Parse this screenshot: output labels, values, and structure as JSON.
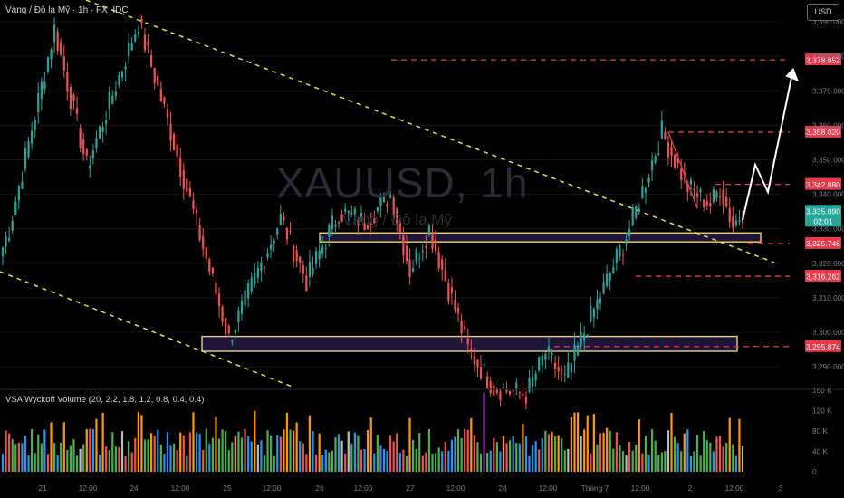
{
  "header": {
    "symbol_line": "Vàng / Đô la Mỹ · 1h · FX_IDC"
  },
  "watermark": {
    "symbol": "XAUUSD, 1h",
    "name": "Vàng / Đô la Mỹ"
  },
  "currency_button": "USD",
  "volume_indicator": {
    "title": "VSA Wyckoff Volume (20, 2.2, 1.8, 1.2, 0.8, 0.4, 0.4)"
  },
  "colors": {
    "up": "#26a69a",
    "down": "#ef5350",
    "trendline": "#e6e04a",
    "zone": "#e8d07a",
    "level": "#e8394a",
    "price_label": "#26a69a"
  },
  "chart_data": {
    "type": "candlestick",
    "ylim": [
      3284,
      3395
    ],
    "y_ticks": [
      "3,390.000",
      "3,380.000",
      "3,370.000",
      "3,360.000",
      "3,350.000",
      "3,340.000",
      "3,330.000",
      "3,320.000",
      "3,310.000",
      "3,300.000",
      "3,290.000"
    ],
    "x_ticks": [
      "21",
      "12:00",
      "24",
      "12:00",
      "25",
      "12:00",
      "26",
      "12:00",
      "27",
      "12:00",
      "28",
      "12:00",
      "Tháng 7",
      "12:00",
      "2",
      "12:00",
      "3"
    ],
    "level_labels": [
      "3,378.952",
      "3,358.020",
      "3,342.880",
      "3,325.746",
      "3,316.262",
      "3,295.874"
    ],
    "levels": [
      3378.952,
      3358.02,
      3342.88,
      3325.746,
      3316.262,
      3295.874
    ],
    "current_price": {
      "value": "3,335.090",
      "countdown": "02:01"
    },
    "zones": [
      [
        3326.2,
        3328.8
      ],
      [
        3294.5,
        3298.8
      ]
    ],
    "volume_ticks": [
      "160 K",
      "120 K",
      "80 K",
      "40 K",
      "0"
    ],
    "volume_max": 160,
    "segments": [
      {
        "from": 3322,
        "to": 3330,
        "n": 3
      },
      {
        "from": 3330,
        "to": 3388,
        "n": 14
      },
      {
        "from": 3388,
        "to": 3348,
        "n": 10
      },
      {
        "from": 3348,
        "to": 3390,
        "n": 16
      },
      {
        "from": 3390,
        "to": 3358,
        "n": 10
      },
      {
        "from": 3358,
        "to": 3298,
        "n": 18
      },
      {
        "from": 3298,
        "to": 3333,
        "n": 16
      },
      {
        "from": 3333,
        "to": 3315,
        "n": 8
      },
      {
        "from": 3315,
        "to": 3335,
        "n": 10
      },
      {
        "from": 3335,
        "to": 3332,
        "n": 8
      },
      {
        "from": 3332,
        "to": 3340,
        "n": 8
      },
      {
        "from": 3340,
        "to": 3318,
        "n": 6
      },
      {
        "from": 3318,
        "to": 3330,
        "n": 6
      },
      {
        "from": 3330,
        "to": 3295,
        "n": 12
      },
      {
        "from": 3295,
        "to": 3284,
        "n": 8
      },
      {
        "from": 3284,
        "to": 3282,
        "n": 10
      },
      {
        "from": 3282,
        "to": 3294,
        "n": 6
      },
      {
        "from": 3294,
        "to": 3286,
        "n": 6
      },
      {
        "from": 3286,
        "to": 3300,
        "n": 6
      },
      {
        "from": 3300,
        "to": 3330,
        "n": 14
      },
      {
        "from": 3330,
        "to": 3358,
        "n": 10
      },
      {
        "from": 3358,
        "to": 3342,
        "n": 8
      },
      {
        "from": 3342,
        "to": 3337,
        "n": 7
      },
      {
        "from": 3337,
        "to": 3342,
        "n": 3
      },
      {
        "from": 3342,
        "to": 3331,
        "n": 4
      },
      {
        "from": 3331,
        "to": 3335.09,
        "n": 3
      }
    ]
  }
}
